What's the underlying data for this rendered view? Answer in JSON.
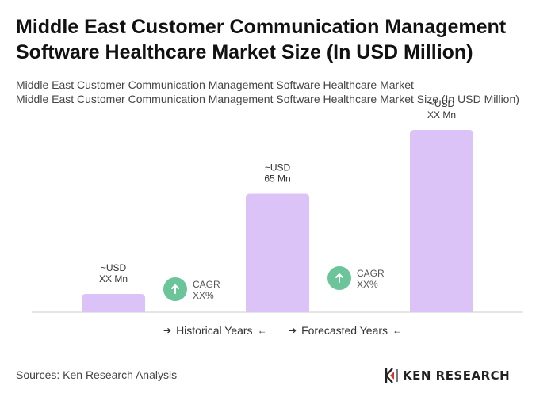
{
  "title": "Middle East Customer Communication Management Software Healthcare Market Size (In USD Million)",
  "subtitle_line1": "Middle East Customer Communication Management Software Healthcare Market",
  "subtitle_line2": "Middle East Customer Communication Management Software Healthcare Market Size (In USD Million)",
  "colors": {
    "bar": "#dcc3f7",
    "cagr_circle": "#6cc59a",
    "axis": "#cccccc"
  },
  "chart_data": {
    "type": "bar",
    "categories": [
      "",
      "",
      ""
    ],
    "values": [
      10,
      65,
      100
    ],
    "ylim": [
      0,
      100
    ],
    "grid": false,
    "bar_labels": [
      {
        "line1": "~USD",
        "line2": "XX Mn"
      },
      {
        "line1": "~USD",
        "line2": "65 Mn"
      },
      {
        "line1": "~USD",
        "line2": "XX Mn"
      }
    ],
    "cagr_annotations": [
      {
        "line1": "CAGR",
        "line2": "XX%"
      },
      {
        "line1": "CAGR",
        "line2": "XX%"
      }
    ]
  },
  "legend": {
    "historical": "Historical Years",
    "forecasted": "Forecasted Years",
    "arrow_right": "➔",
    "arrow_left": "←"
  },
  "footer": {
    "source": "Sources: Ken Research Analysis",
    "logo_text": "KEN RESEARCH"
  }
}
